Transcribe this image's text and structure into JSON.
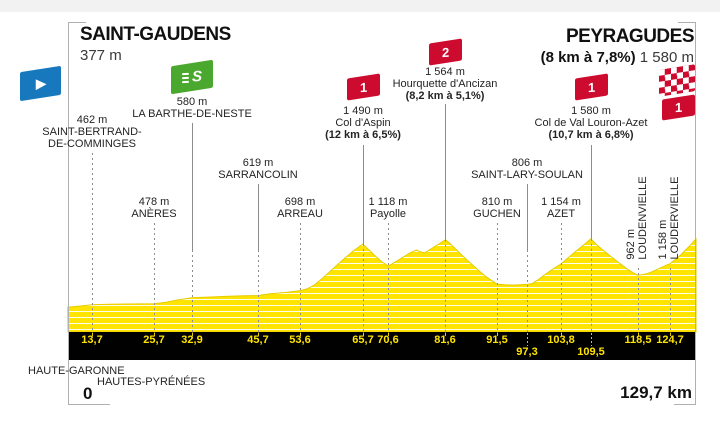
{
  "header": {
    "start_name": "SAINT-GAUDENS",
    "start_elevation": "377 m",
    "finish_name": "PEYRAGUDES",
    "finish_gradient": "(8 km à 7,8%)",
    "finish_elevation": "1 580 m"
  },
  "footer": {
    "km_start": "0",
    "total_distance": "129,7 km",
    "departments": [
      "HAUTE-GARONNE",
      "HAUTES-PYRÉNÉES"
    ]
  },
  "icons": {
    "depart_flag_glyph": "▶",
    "sprint_letter": "S",
    "finish_flag": "checkered-flag",
    "category_flag": "red-category-flag"
  },
  "colors": {
    "yellow": "#FFE400",
    "red": "#CD0B2F",
    "green": "#4BA82E",
    "blue": "#1778BE",
    "bar_black": "#010101",
    "leader_gray": "#8c8c8c",
    "frame_gray": "#b0b0b0"
  },
  "chart_data": {
    "type": "area",
    "title": "Profil de l'étape Saint-Gaudens → Peyragudes",
    "x_unit": "km",
    "y_unit": "m",
    "x_range": [
      0,
      129.7
    ],
    "grid": "dashed-vertical-at-waypoints",
    "start": {
      "name": "Saint-Gaudens",
      "elevation_m": 377
    },
    "finish": {
      "name": "Peyragudes",
      "elevation_m": 1580,
      "climb": "8 km à 7,8%",
      "category": "1",
      "km": 129.7
    },
    "waypoints": [
      {
        "km": 13.7,
        "km_label": "13,7",
        "elev": "462 m",
        "name_lines": [
          "SAINT-BERTRAND-",
          "DE-COMMINGES"
        ],
        "kind": "village",
        "row": "top",
        "km_row": 1
      },
      {
        "km": 25.7,
        "km_label": "25,7",
        "elev": "478 m",
        "name_lines": [
          "ANÈRES"
        ],
        "kind": "village",
        "row": "low",
        "km_row": 1
      },
      {
        "km": 32.9,
        "km_label": "32,9",
        "elev": "580 m",
        "name_lines": [
          "LA BARTHE-DE-NESTE"
        ],
        "kind": "sprint",
        "row": "top2",
        "km_row": 1
      },
      {
        "km": 45.7,
        "km_label": "45,7",
        "elev": "619 m",
        "name_lines": [
          "SARRANCOLIN"
        ],
        "kind": "village",
        "row": "mid",
        "km_row": 1
      },
      {
        "km": 53.6,
        "km_label": "53,6",
        "elev": "698 m",
        "name_lines": [
          "ARREAU"
        ],
        "kind": "village",
        "row": "low",
        "km_row": 1
      },
      {
        "km": 65.7,
        "km_label": "65,7",
        "elev": "1 490 m",
        "name_lines": [
          "Col d'Aspin"
        ],
        "gradient": "(12 km à 6,5%)",
        "kind": "climb",
        "category": "1",
        "row": "climb1",
        "km_row": 1,
        "peak_m": 1490
      },
      {
        "km": 70.6,
        "km_label": "70,6",
        "elev": "1 118 m",
        "name_lines": [
          "Payolle"
        ],
        "kind": "village",
        "row": "low",
        "km_row": 1
      },
      {
        "km": 81.6,
        "km_label": "81,6",
        "elev": "1 564 m",
        "name_lines": [
          "Hourquette d'Ancizan"
        ],
        "gradient": "(8,2 km à 5,1%)",
        "kind": "climb",
        "category": "2",
        "row": "climb2",
        "km_row": 1,
        "peak_m": 1564
      },
      {
        "km": 91.5,
        "km_label": "91,5",
        "elev": "810 m",
        "name_lines": [
          "GUCHEN"
        ],
        "kind": "village",
        "row": "low",
        "km_row": 1
      },
      {
        "km": 97.3,
        "km_label": "97,3",
        "elev": "806 m",
        "name_lines": [
          "SAINT-LARY-SOULAN"
        ],
        "kind": "village",
        "row": "mid",
        "km_row": 2
      },
      {
        "km": 103.8,
        "km_label": "103,8",
        "elev": "1 154 m",
        "name_lines": [
          "AZET"
        ],
        "kind": "village",
        "row": "low",
        "km_row": 1
      },
      {
        "km": 109.5,
        "km_label": "109,5",
        "elev": "1 580 m",
        "name_lines": [
          "Col de Val Louron-Azet"
        ],
        "gradient": "(10,7 km à 6,8%)",
        "kind": "climb",
        "category": "1",
        "row": "climb1",
        "km_row": 2,
        "peak_m": 1580
      },
      {
        "km": 118.5,
        "km_label": "118,5",
        "elev": "962 m",
        "name_lines": [
          "LOUDENVIELLE"
        ],
        "kind": "village",
        "row": "vertical",
        "km_row": 1
      },
      {
        "km": 124.7,
        "km_label": "124,7",
        "elev": "1 158 m",
        "name_lines": [
          "LOUDERVIELLE"
        ],
        "kind": "village",
        "row": "vertical",
        "km_row": 1
      },
      {
        "km": 129.7,
        "km_label": "",
        "kind": "finish",
        "category": "1",
        "row": "finish"
      }
    ],
    "profile": [
      [
        9.1,
        420
      ],
      [
        12,
        445
      ],
      [
        13.7,
        462
      ],
      [
        17,
        470
      ],
      [
        21,
        474
      ],
      [
        25.7,
        478
      ],
      [
        28,
        505
      ],
      [
        30,
        540
      ],
      [
        32.9,
        580
      ],
      [
        36,
        592
      ],
      [
        40,
        605
      ],
      [
        43,
        613
      ],
      [
        45.7,
        619
      ],
      [
        48,
        648
      ],
      [
        51,
        672
      ],
      [
        53.6,
        698
      ],
      [
        55,
        730
      ],
      [
        56.5,
        800
      ],
      [
        58,
        910
      ],
      [
        59.5,
        1030
      ],
      [
        61,
        1150
      ],
      [
        62.5,
        1270
      ],
      [
        64,
        1380
      ],
      [
        65.7,
        1490
      ],
      [
        66.8,
        1400
      ],
      [
        68,
        1300
      ],
      [
        69.3,
        1195
      ],
      [
        70.6,
        1118
      ],
      [
        71.5,
        1160
      ],
      [
        72.5,
        1215
      ],
      [
        73.5,
        1270
      ],
      [
        74.8,
        1340
      ],
      [
        76,
        1390
      ],
      [
        76.8,
        1360
      ],
      [
        77.6,
        1340
      ],
      [
        78.6,
        1395
      ],
      [
        79.6,
        1450
      ],
      [
        80.6,
        1505
      ],
      [
        81.6,
        1564
      ],
      [
        82.6,
        1490
      ],
      [
        83.6,
        1400
      ],
      [
        85,
        1280
      ],
      [
        86.5,
        1160
      ],
      [
        88,
        1040
      ],
      [
        89.5,
        930
      ],
      [
        91.5,
        810
      ],
      [
        93,
        800
      ],
      [
        94.5,
        795
      ],
      [
        96,
        800
      ],
      [
        97.3,
        806
      ],
      [
        98.3,
        820
      ],
      [
        99.3,
        880
      ],
      [
        100.5,
        960
      ],
      [
        101.8,
        1040
      ],
      [
        103.8,
        1154
      ],
      [
        105.3,
        1270
      ],
      [
        106.8,
        1380
      ],
      [
        108.2,
        1480
      ],
      [
        109.5,
        1580
      ],
      [
        110.5,
        1490
      ],
      [
        111.8,
        1390
      ],
      [
        113.2,
        1290
      ],
      [
        114.8,
        1180
      ],
      [
        116.3,
        1080
      ],
      [
        117.5,
        1010
      ],
      [
        118.5,
        962
      ],
      [
        119.5,
        975
      ],
      [
        120.5,
        995
      ],
      [
        121.5,
        1030
      ],
      [
        122.7,
        1080
      ],
      [
        123.7,
        1120
      ],
      [
        124.7,
        1158
      ],
      [
        125.7,
        1225
      ],
      [
        126.7,
        1300
      ],
      [
        127.7,
        1390
      ],
      [
        128.7,
        1480
      ],
      [
        129.7,
        1580
      ]
    ]
  }
}
